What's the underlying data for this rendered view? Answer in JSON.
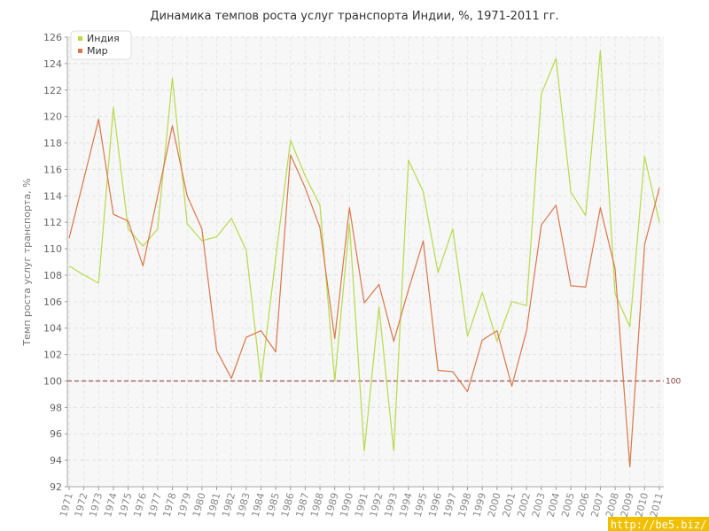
{
  "chart_data": {
    "type": "line",
    "title": "Динамика темпов роста услуг транспорта Индии, %, 1971-2011 гг.",
    "xlabel": "",
    "ylabel": "Темп роста услуг транспорта, %",
    "ylim": [
      92,
      126
    ],
    "ytick_step": 2,
    "grid": true,
    "legend_position": "top-left",
    "reference_line": {
      "value": 100,
      "label": "100",
      "color": "#a05050"
    },
    "x": [
      1971,
      1972,
      1973,
      1974,
      1975,
      1976,
      1977,
      1978,
      1979,
      1980,
      1981,
      1982,
      1983,
      1984,
      1985,
      1986,
      1987,
      1988,
      1989,
      1990,
      1991,
      1992,
      1993,
      1994,
      1995,
      1996,
      1997,
      1998,
      1999,
      2000,
      2001,
      2002,
      2003,
      2004,
      2005,
      2006,
      2007,
      2008,
      2009,
      2010,
      2011
    ],
    "series": [
      {
        "name": "Индия",
        "color": "#b8d94a",
        "values": [
          108.7,
          108.0,
          107.4,
          120.7,
          111.5,
          110.2,
          111.5,
          122.9,
          111.9,
          110.6,
          110.9,
          112.3,
          109.9,
          100.0,
          109.3,
          118.2,
          115.5,
          113.3,
          100.0,
          111.9,
          94.7,
          105.6,
          94.7,
          116.7,
          114.3,
          108.2,
          111.5,
          103.4,
          106.7,
          103.0,
          106.0,
          105.7,
          121.7,
          124.4,
          114.3,
          112.5,
          125.0,
          106.6,
          104.1,
          117.0,
          112.0
        ]
      },
      {
        "name": "Мир",
        "color": "#d9774a",
        "values": [
          110.8,
          115.3,
          119.8,
          112.6,
          112.1,
          108.7,
          114.0,
          119.3,
          114.0,
          111.5,
          102.3,
          100.2,
          103.3,
          103.8,
          102.2,
          117.1,
          114.6,
          111.6,
          103.2,
          113.1,
          105.9,
          107.3,
          103.0,
          106.9,
          110.6,
          100.8,
          100.7,
          99.2,
          103.1,
          103.8,
          99.6,
          103.8,
          111.8,
          113.3,
          107.2,
          107.1,
          113.1,
          108.5,
          93.5,
          110.3,
          114.6
        ]
      }
    ]
  },
  "watermark": "http://be5.biz/"
}
